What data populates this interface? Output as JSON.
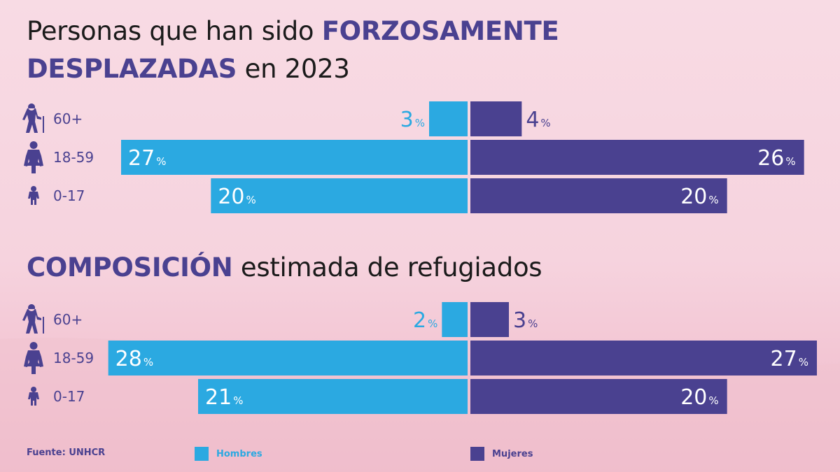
{
  "chart_data": [
    {
      "type": "bar",
      "title": {
        "part1": "Personas que han sido ",
        "highlight1": "FORZOSAMENTE",
        "highlight2": "DESPLAZADAS",
        "part2": " en 2023"
      },
      "categories": [
        "60+",
        "18-59",
        "0-17"
      ],
      "series": [
        {
          "name": "Hombres",
          "values": [
            3,
            27,
            20
          ]
        },
        {
          "name": "Mujeres",
          "values": [
            4,
            26,
            20
          ]
        }
      ],
      "unit": "%",
      "xlim": [
        0,
        27
      ]
    },
    {
      "type": "bar",
      "title": {
        "highlight1": "COMPOSICIÓN",
        "part2": " estimada de refugiados"
      },
      "categories": [
        "60+",
        "18-59",
        "0-17"
      ],
      "series": [
        {
          "name": "Hombres",
          "values": [
            2,
            28,
            21
          ]
        },
        {
          "name": "Mujeres",
          "values": [
            3,
            27,
            20
          ]
        }
      ],
      "unit": "%",
      "xlim": [
        0,
        27
      ]
    }
  ],
  "icons": [
    "elderly-person-icon",
    "adult-woman-icon",
    "child-icon"
  ],
  "colors": {
    "men": "#2ba9e1",
    "women": "#4a4190",
    "title_highlight": "#4a4190",
    "title_text": "#1b1b1b"
  },
  "footer": {
    "source": "Fuente: UNHCR",
    "legend_men": "Hombres",
    "legend_women": "Mujeres"
  }
}
